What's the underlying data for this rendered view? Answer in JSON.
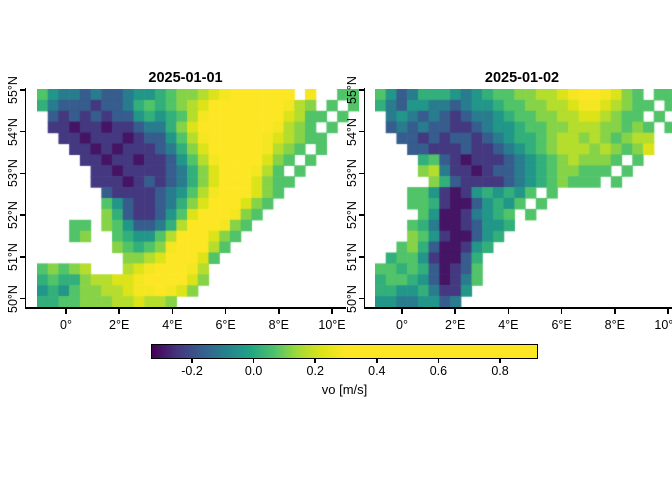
{
  "figure": {
    "background": "#ffffff",
    "foreground": "#000000"
  },
  "panels": [
    {
      "title": "2025-01-01"
    },
    {
      "title": "2025-01-02"
    }
  ],
  "axes": {
    "x_tick_labels": [
      "0°",
      "2°E",
      "4°E",
      "6°E",
      "8°E",
      "10°E"
    ],
    "y_tick_labels": [
      "50°N",
      "51°N",
      "52°N",
      "53°N",
      "54°N",
      "55°N"
    ]
  },
  "colorbar": {
    "label": "vo [m/s]",
    "tick_labels": [
      "-0.2",
      "0.0",
      "0.2",
      "0.4",
      "0.6",
      "0.8"
    ],
    "tick_values": [
      -0.2,
      0.0,
      0.2,
      0.4,
      0.6,
      0.8
    ]
  },
  "chart_data": {
    "type": "heatmap",
    "variable": "vo",
    "units": "m/s",
    "x_axis": {
      "tick_labels": [
        "0°",
        "2°E",
        "4°E",
        "6°E",
        "8°E",
        "10°E"
      ]
    },
    "y_axis": {
      "tick_labels": [
        "50°N",
        "51°N",
        "52°N",
        "53°N",
        "54°N",
        "55°N"
      ]
    },
    "color_scale": {
      "palette": "viridis",
      "domain": [
        -0.33,
        0.92
      ],
      "saturate_above": 0.3,
      "viridis_stops": [
        [
          0.0,
          "#440154"
        ],
        [
          0.125,
          "#46327e"
        ],
        [
          0.25,
          "#365c8d"
        ],
        [
          0.375,
          "#277f8e"
        ],
        [
          0.5,
          "#1fa187"
        ],
        [
          0.625,
          "#4ac16d"
        ],
        [
          0.75,
          "#a0da39"
        ],
        [
          0.875,
          "#dde318"
        ],
        [
          1.0,
          "#fde725"
        ]
      ]
    },
    "grid_shape": {
      "cols": 30,
      "rows": 20,
      "note": "row 0 = 55N edge, col 0 = west edge; '.' = no data (land)"
    },
    "value_encoding": {
      ".": null,
      "0": -0.3,
      "1": -0.24,
      "2": -0.17,
      "3": -0.1,
      "4": -0.04,
      "5": 0.02,
      "6": 0.07,
      "7": 0.12,
      "8": 0.17,
      "9": 0.22,
      "a": 0.28,
      "b": 0.35,
      "c": 0.45,
      "d": 0.6,
      "e": 0.75,
      "f": 0.9
    },
    "panels": [
      {
        "date": "2025-01-01",
        "grid": [
          "64332322344567789acccccb.a..66",
          "5322212235656789bcccccca87.6.6",
          ".21212122454568accccccb9866.6.",
          ".11011011233579bcccccba876.6..",
          "..1101110122468accccca98766...",
          "...1101011123579bcccca876.6...",
          "....110110112468acccb976.6....",
          ".....110111123579bcca86.6.....",
          ".....111012123579bcb9766......",
          "......2111123468accb976.......",
          "......6421123579bcb976........",
          "......752112469bcca76.........",
          "...66.76422358bcca76..........",
          "...67..654468bcc976...........",
          ".......76567accb86............",
          "........7789bcb96.............",
          "67678...89abcca8..............",
          "565578899abccb97..............",
          "454677889aaba97...............",
          "5566777889887................."
        ]
      },
      {
        "date": "2025-01-02",
        "grid": [
          "642355543456677889abba976.66..",
          "5324433234456677889aa98766.6..",
          ".343232123345667788998766.6...",
          ".2323221123445667788877676.6..",
          "..221212212345567887876788....",
          "...22111211234567888787679....",
          "....5621011123456787776.6.....",
          "....783110122345677666.6......",
          ".....7521111234567666.6.......",
          "...664101454546.6.............",
          "...66510024546.6..............",
          "....640013456.6...............",
          "...6530012445.................",
          "...764100245..................",
          "..675200145...................",
          ".566410025....................",
          "6656520126....................",
          "5665420136....................",
          "554453114.....................",
          "44334423......................"
        ]
      }
    ]
  }
}
